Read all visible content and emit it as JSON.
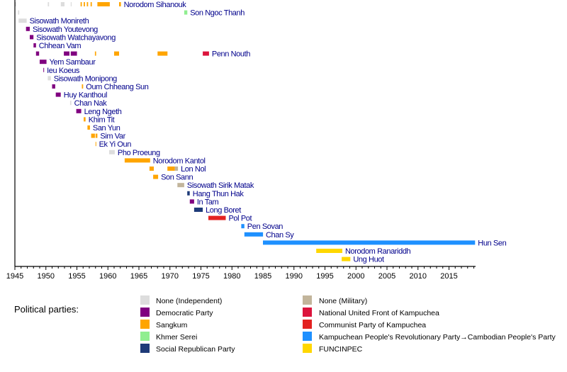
{
  "chart_data": {
    "type": "timeline",
    "title": "",
    "xlabel": "",
    "ylabel": "",
    "xlim": [
      1945,
      2019.2
    ],
    "x_ticks_major": [
      1945,
      1950,
      1955,
      1960,
      1965,
      1970,
      1975,
      1980,
      1985,
      1990,
      1995,
      2000,
      2005,
      2010,
      2015
    ],
    "x_ticks_minor_step": 1,
    "grid": false,
    "parties": [
      {
        "key": "independent",
        "name": "None (Independent)",
        "color": "#dddddd"
      },
      {
        "key": "democratic",
        "name": "Democratic Party",
        "color": "#800080"
      },
      {
        "key": "sangkum",
        "name": "Sangkum",
        "color": "#ffa500"
      },
      {
        "key": "khmer_serei",
        "name": "Khmer Serei",
        "color": "#90ee90"
      },
      {
        "key": "social_republican",
        "name": "Social Republican Party",
        "color": "#1e3a78"
      },
      {
        "key": "military",
        "name": "None (Military)",
        "color": "#c2b59b"
      },
      {
        "key": "funk",
        "name": "National United Front of Kampuchea",
        "color": "#dc143c"
      },
      {
        "key": "cpk",
        "name": "Communist Party of Kampuchea",
        "color": "#e32221"
      },
      {
        "key": "cpp",
        "name": "Kampuchean People's Revolutionary Party→Cambodian People's Party",
        "color": "#1e90ff"
      },
      {
        "key": "funcinpec",
        "name": "FUNCINPEC",
        "color": "#ffd700"
      }
    ],
    "legend": {
      "title": "Political parties:",
      "placement": "bottom"
    },
    "rows": [
      {
        "name": "Norodom Sihanouk",
        "terms": [
          {
            "start": 1945.0,
            "end": 1945.2,
            "party": "independent"
          },
          {
            "start": 1950.3,
            "end": 1950.5,
            "party": "independent"
          },
          {
            "start": 1952.4,
            "end": 1953.0,
            "party": "independent"
          },
          {
            "start": 1954.0,
            "end": 1954.15,
            "party": "independent"
          },
          {
            "start": 1955.6,
            "end": 1955.8,
            "party": "sangkum"
          },
          {
            "start": 1956.1,
            "end": 1956.3,
            "party": "sangkum"
          },
          {
            "start": 1956.6,
            "end": 1956.8,
            "party": "sangkum"
          },
          {
            "start": 1957.2,
            "end": 1957.4,
            "party": "sangkum"
          },
          {
            "start": 1958.3,
            "end": 1960.3,
            "party": "sangkum"
          },
          {
            "start": 1961.8,
            "end": 1962.1,
            "party": "sangkum"
          }
        ]
      },
      {
        "name": "Son Ngoc Thanh",
        "terms": [
          {
            "start": 1945.5,
            "end": 1945.7,
            "party": "independent"
          },
          {
            "start": 1972.3,
            "end": 1972.8,
            "party": "khmer_serei"
          }
        ]
      },
      {
        "name": "Sisowath Monireth",
        "terms": [
          {
            "start": 1945.6,
            "end": 1946.9,
            "party": "independent"
          }
        ]
      },
      {
        "name": "Sisowath Youtevong",
        "terms": [
          {
            "start": 1946.8,
            "end": 1947.4,
            "party": "democratic"
          }
        ]
      },
      {
        "name": "Sisowath Watchayavong",
        "terms": [
          {
            "start": 1947.4,
            "end": 1948.0,
            "party": "democratic"
          }
        ]
      },
      {
        "name": "Chhean Vam",
        "terms": [
          {
            "start": 1948.0,
            "end": 1948.4,
            "party": "democratic"
          }
        ]
      },
      {
        "name": "Penn Nouth",
        "terms": [
          {
            "start": 1948.4,
            "end": 1948.9,
            "party": "democratic"
          },
          {
            "start": 1952.9,
            "end": 1953.8,
            "party": "democratic"
          },
          {
            "start": 1954.0,
            "end": 1955.0,
            "party": "democratic"
          },
          {
            "start": 1957.9,
            "end": 1958.1,
            "party": "sangkum"
          },
          {
            "start": 1961.0,
            "end": 1961.8,
            "party": "sangkum"
          },
          {
            "start": 1968.0,
            "end": 1969.6,
            "party": "sangkum"
          },
          {
            "start": 1975.3,
            "end": 1976.3,
            "party": "funk"
          }
        ]
      },
      {
        "name": "Yem Sambaur",
        "terms": [
          {
            "start": 1949.0,
            "end": 1950.1,
            "party": "democratic"
          }
        ]
      },
      {
        "name": "Ieu Koeus",
        "terms": [
          {
            "start": 1949.6,
            "end": 1949.7,
            "party": "democratic"
          }
        ]
      },
      {
        "name": "Sisowath Monipong",
        "terms": [
          {
            "start": 1950.3,
            "end": 1950.8,
            "party": "independent"
          }
        ]
      },
      {
        "name": "Oum Chheang Sun",
        "terms": [
          {
            "start": 1951.0,
            "end": 1951.5,
            "party": "democratic"
          },
          {
            "start": 1955.8,
            "end": 1956.0,
            "party": "sangkum"
          }
        ]
      },
      {
        "name": "Huy Kanthoul",
        "terms": [
          {
            "start": 1951.6,
            "end": 1952.4,
            "party": "democratic"
          }
        ]
      },
      {
        "name": "Chan Nak",
        "terms": [
          {
            "start": 1953.9,
            "end": 1954.1,
            "party": "independent"
          }
        ]
      },
      {
        "name": "Leng Ngeth",
        "terms": [
          {
            "start": 1954.9,
            "end": 1955.7,
            "party": "democratic"
          }
        ]
      },
      {
        "name": "Khim Tit",
        "terms": [
          {
            "start": 1956.1,
            "end": 1956.4,
            "party": "sangkum"
          }
        ]
      },
      {
        "name": "San Yun",
        "terms": [
          {
            "start": 1956.7,
            "end": 1957.1,
            "party": "sangkum"
          }
        ]
      },
      {
        "name": "Sim Var",
        "terms": [
          {
            "start": 1957.3,
            "end": 1957.9,
            "party": "sangkum"
          },
          {
            "start": 1958.0,
            "end": 1958.3,
            "party": "sangkum"
          }
        ]
      },
      {
        "name": "Ek Yi Oun",
        "terms": [
          {
            "start": 1958.0,
            "end": 1958.1,
            "party": "sangkum"
          }
        ]
      },
      {
        "name": "Pho Proeung",
        "terms": [
          {
            "start": 1960.2,
            "end": 1961.1,
            "party": "independent"
          }
        ]
      },
      {
        "name": "Norodom Kantol",
        "terms": [
          {
            "start": 1962.7,
            "end": 1966.8,
            "party": "sangkum"
          }
        ]
      },
      {
        "name": "Lon Nol",
        "terms": [
          {
            "start": 1966.7,
            "end": 1967.4,
            "party": "sangkum"
          },
          {
            "start": 1969.6,
            "end": 1970.8,
            "party": "sangkum"
          },
          {
            "start": 1970.8,
            "end": 1971.3,
            "party": "military"
          }
        ]
      },
      {
        "name": "Son Sann",
        "terms": [
          {
            "start": 1967.3,
            "end": 1968.1,
            "party": "sangkum"
          }
        ]
      },
      {
        "name": "Sisowath Sirik Matak",
        "terms": [
          {
            "start": 1971.2,
            "end": 1972.3,
            "party": "military"
          }
        ]
      },
      {
        "name": "Hang Thun Hak",
        "terms": [
          {
            "start": 1972.8,
            "end": 1973.2,
            "party": "social_republican"
          }
        ]
      },
      {
        "name": "In Tam",
        "terms": [
          {
            "start": 1973.2,
            "end": 1973.9,
            "party": "democratic"
          }
        ]
      },
      {
        "name": "Long Boret",
        "terms": [
          {
            "start": 1973.9,
            "end": 1975.3,
            "party": "social_republican"
          }
        ]
      },
      {
        "name": "Pol Pot",
        "terms": [
          {
            "start": 1976.2,
            "end": 1979.0,
            "party": "cpk"
          }
        ]
      },
      {
        "name": "Pen Sovan",
        "terms": [
          {
            "start": 1981.5,
            "end": 1982.0,
            "party": "cpp"
          }
        ]
      },
      {
        "name": "Chan Sy",
        "terms": [
          {
            "start": 1982.0,
            "end": 1985.0,
            "party": "cpp"
          }
        ]
      },
      {
        "name": "Hun Sen",
        "terms": [
          {
            "start": 1985.0,
            "end": 2019.2,
            "party": "cpp"
          }
        ]
      },
      {
        "name": "Norodom Ranariddh",
        "terms": [
          {
            "start": 1993.6,
            "end": 1997.8,
            "party": "funcinpec"
          }
        ]
      },
      {
        "name": "Ung Huot",
        "terms": [
          {
            "start": 1997.7,
            "end": 1999.1,
            "party": "funcinpec"
          }
        ]
      }
    ]
  }
}
